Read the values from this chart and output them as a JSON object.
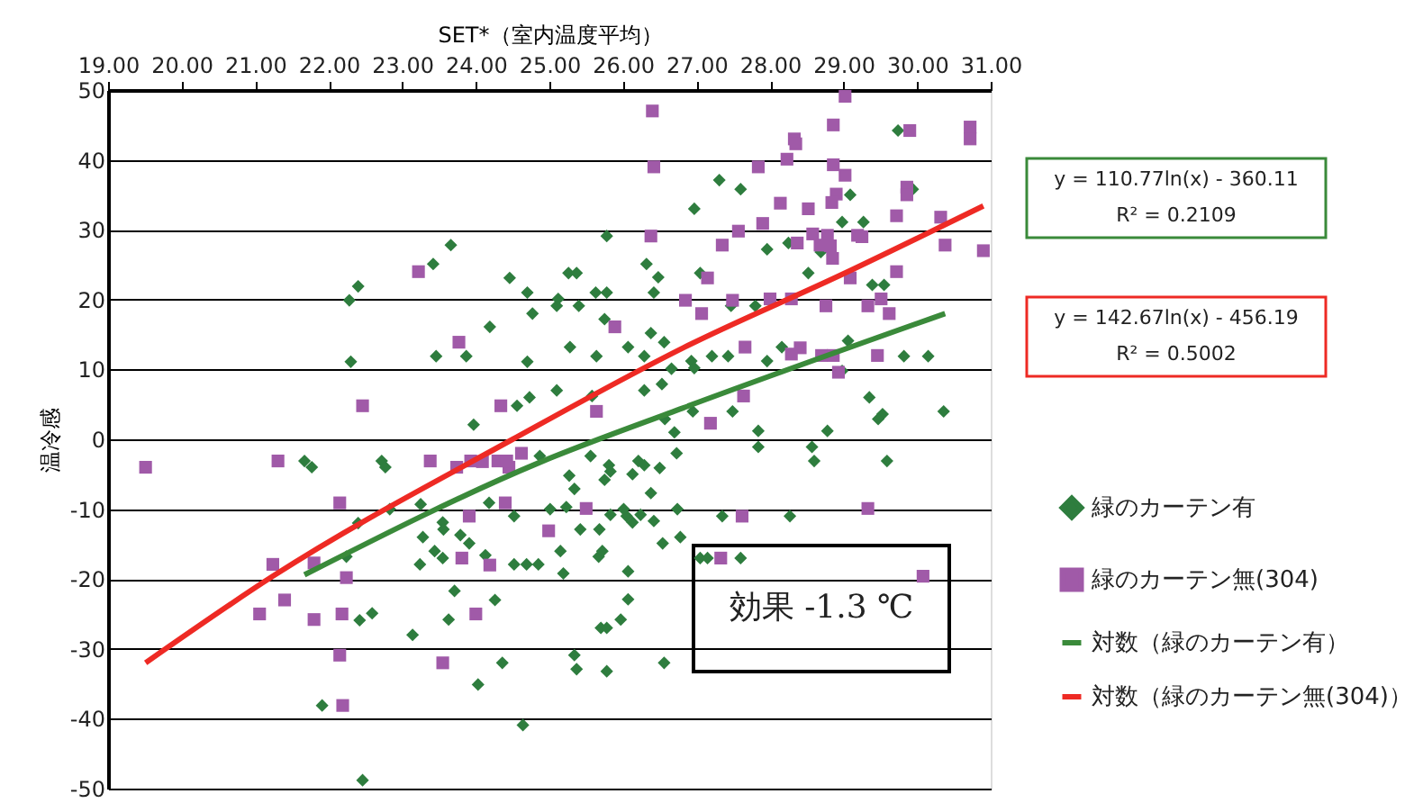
{
  "chart_data": {
    "type": "scatter",
    "xlabel": "SET*（室内温度平均）",
    "ylabel": "温冷感",
    "xlim": [
      19,
      31
    ],
    "ylim": [
      -50,
      50
    ],
    "xticks": [
      {
        "value": 19,
        "label": "19.00"
      },
      {
        "value": 20,
        "label": "20.00"
      },
      {
        "value": 21,
        "label": "21.00"
      },
      {
        "value": 22,
        "label": "22.00"
      },
      {
        "value": 23,
        "label": "23.00"
      },
      {
        "value": 24,
        "label": "24.00"
      },
      {
        "value": 25,
        "label": "25.00"
      },
      {
        "value": 26,
        "label": "26.00"
      },
      {
        "value": 27,
        "label": "27.00"
      },
      {
        "value": 28,
        "label": "28.00"
      },
      {
        "value": 29,
        "label": "29.00"
      },
      {
        "value": 30,
        "label": "30.00"
      },
      {
        "value": 31,
        "label": "31.00"
      }
    ],
    "yticks": [
      -50,
      -40,
      -30,
      -20,
      -10,
      0,
      10,
      20,
      30,
      40,
      50
    ],
    "grid": "y",
    "legend": "right",
    "annotations": [
      "y = 110.77ln(x) - 360.11",
      "R² = 0.2109",
      "y = 142.67ln(x) - 456.19",
      "R² = 0.5002",
      "効果 -1.3 ℃"
    ],
    "series": [
      {
        "name": "緑のカーテン有",
        "marker": "diamond",
        "color": "#2e7d3e",
        "x": [
          22.28,
          22.4,
          22.3,
          23.42,
          23.66,
          23.46,
          23.87,
          24.19,
          24.46,
          24.7,
          24.77,
          24.7,
          24.73,
          24.56,
          23.97,
          25.1,
          25.12,
          25.26,
          25.37,
          25.4,
          25.28,
          25.1,
          25.63,
          25.78,
          25.78,
          25.75,
          25.64,
          25.58,
          26.07,
          26.32,
          26.48,
          26.42,
          26.38,
          26.56,
          26.29,
          26.29,
          26.53,
          26.66,
          26.57,
          26.97,
          26.93,
          26.97,
          27.05,
          27.21,
          26.95,
          27.31,
          29.74,
          27.6,
          29.09,
          29.94,
          28.98,
          29.27,
          27.96,
          28.25,
          28.69,
          28.52,
          29.39,
          29.55,
          27.47,
          27.8,
          27.43,
          27.96,
          28.16,
          29.06,
          29.82,
          30.15,
          28.98,
          29.35,
          29.53,
          29.47,
          30.36,
          27.49,
          27.84,
          28.78,
          27.84,
          28.57,
          28.6,
          29.59,
          27.35,
          28.27,
          27.05,
          27.15,
          27.6,
          21.67,
          21.77,
          22.72,
          22.77,
          22.4,
          22.24,
          22.83,
          23.25,
          23.28,
          23.55,
          23.56,
          23.44,
          23.55,
          23.24,
          23.79,
          23.91,
          23.71,
          23.63,
          23.14,
          22.42,
          22.59,
          21.91,
          22.46,
          24.18,
          24.13,
          24.26,
          24.36,
          24.03,
          24.52,
          24.69,
          24.85,
          24.52,
          24.64,
          24.87,
          25.01,
          25.23,
          25.27,
          25.34,
          25.15,
          25.19,
          25.34,
          25.37,
          25.78,
          25.67,
          25.72,
          25.42,
          25.68,
          25.7,
          25.78,
          25.97,
          26.07,
          26.07,
          25.75,
          25.81,
          25.83,
          25.56,
          25.83,
          26.05,
          26.13,
          26.24,
          26.42,
          26.01,
          26.13,
          26.21,
          26.29,
          26.38,
          26.5,
          26.7,
          26.73,
          26.54,
          26.74,
          26.78,
          26.56
        ],
        "values": [
          19.9,
          21.9,
          11.1,
          25.1,
          27.8,
          11.9,
          11.9,
          16.1,
          23.1,
          21.0,
          18.0,
          11.1,
          6.0,
          4.8,
          2.1,
          19.1,
          20.1,
          23.8,
          23.8,
          19.1,
          13.2,
          7.0,
          21.0,
          21.0,
          29.1,
          17.2,
          11.9,
          6.2,
          13.2,
          25.1,
          23.2,
          21.0,
          15.2,
          13.9,
          11.9,
          7.0,
          7.9,
          10.1,
          2.9,
          33.0,
          11.2,
          10.2,
          23.8,
          11.9,
          4.0,
          37.1,
          44.2,
          35.8,
          35.0,
          35.8,
          31.1,
          31.1,
          27.2,
          28.1,
          26.8,
          23.8,
          22.1,
          22.1,
          19.1,
          19.1,
          11.9,
          11.2,
          13.2,
          14.1,
          11.9,
          11.9,
          9.8,
          6.0,
          3.6,
          2.9,
          4.0,
          4.0,
          1.2,
          1.2,
          -1.1,
          -1.1,
          -3.1,
          -3.1,
          -11.0,
          -11.0,
          -17.0,
          -17.0,
          -17.0,
          -3.1,
          -4.0,
          -3.1,
          -4.0,
          -12.0,
          -16.8,
          -10.0,
          -9.3,
          -14.0,
          -11.9,
          -12.9,
          -16.0,
          -17.0,
          -17.9,
          -13.7,
          -14.9,
          -21.7,
          -25.8,
          -28.0,
          -25.9,
          -24.9,
          -38.1,
          -48.8,
          -9.1,
          -16.6,
          -23.0,
          -32.0,
          -35.1,
          -17.9,
          -17.9,
          -17.9,
          -11.0,
          -40.9,
          -2.4,
          -10.0,
          -9.7,
          -5.2,
          -7.1,
          -16.0,
          -19.2,
          -30.9,
          -32.9,
          -33.2,
          -16.8,
          -16.0,
          -12.9,
          -12.9,
          -27.0,
          -27.0,
          -25.8,
          -22.9,
          -18.9,
          -5.8,
          -3.7,
          -4.6,
          -2.4,
          -10.8,
          -11.0,
          -11.9,
          -10.8,
          -11.7,
          -10.0,
          -5.0,
          -3.1,
          -3.7,
          -7.7,
          -4.1,
          1.0,
          -2.0,
          -14.9,
          -10.0,
          -14.0,
          -32.0
        ]
      },
      {
        "name": "緑のカーテン無(304)",
        "marker": "square",
        "color": "#a05aa8",
        "x": [
          26.4,
          26.42,
          26.38,
          23.22,
          27.15,
          26.85,
          27.07,
          25.89,
          23.77,
          22.46,
          24.34,
          25.64,
          27.35,
          27.19,
          29.02,
          28.86,
          29.9,
          30.72,
          30.72,
          28.33,
          28.35,
          28.23,
          27.84,
          28.86,
          29.02,
          28.9,
          28.84,
          29.86,
          29.86,
          28.14,
          28.52,
          29.72,
          30.32,
          27.9,
          27.57,
          28.58,
          28.78,
          28.82,
          28.85,
          28.37,
          28.68,
          29.19,
          29.25,
          30.38,
          30.9,
          29.09,
          29.72,
          27.49,
          28.0,
          28.29,
          28.76,
          29.33,
          29.51,
          29.62,
          27.66,
          28.29,
          28.41,
          28.7,
          28.86,
          29.46,
          28.93,
          27.64,
          27.62,
          29.33,
          27.33,
          30.08,
          19.51,
          21.31,
          22.15,
          21.24,
          21.8,
          22.24,
          21.06,
          21.4,
          21.8,
          22.18,
          22.15,
          22.19,
          23.38,
          23.74,
          23.93,
          24.09,
          24.3,
          24.45,
          24.42,
          24.62,
          23.91,
          24.4,
          25.5,
          24.99,
          23.81,
          24.19,
          24.0,
          23.55
        ],
        "values": [
          47.0,
          39.0,
          29.1,
          24.0,
          23.1,
          19.9,
          18.0,
          16.1,
          13.9,
          4.8,
          4.8,
          4.0,
          27.8,
          2.3,
          49.1,
          45.0,
          44.2,
          44.7,
          43.0,
          43.0,
          42.3,
          40.1,
          39.0,
          39.3,
          37.8,
          35.1,
          33.9,
          36.1,
          35.0,
          33.8,
          33.0,
          32.0,
          31.8,
          30.9,
          29.8,
          29.4,
          29.2,
          27.7,
          25.9,
          28.1,
          27.8,
          29.2,
          29.0,
          27.8,
          27.0,
          23.1,
          24.0,
          19.9,
          20.1,
          20.1,
          19.1,
          19.1,
          20.1,
          18.0,
          13.2,
          12.2,
          13.1,
          12.0,
          12.0,
          12.0,
          9.6,
          6.2,
          -11.0,
          -9.9,
          -17.0,
          -19.6,
          -4.0,
          -3.1,
          -9.1,
          -17.9,
          -17.7,
          -19.8,
          -25.0,
          -23.0,
          -25.8,
          -25.0,
          -30.9,
          -38.1,
          -3.1,
          -4.0,
          -3.1,
          -3.2,
          -3.1,
          -4.0,
          -3.1,
          -2.0,
          -11.0,
          -9.1,
          -9.9,
          -13.1,
          -17.0,
          -18.0,
          -25.0,
          -32.0
        ]
      },
      {
        "name": "対数（緑のカーテン有）",
        "type": "line",
        "color": "#3a8a3a",
        "x": [
          21.67,
          24.87,
          26.82,
          30.38
        ],
        "values": [
          -19.4,
          -3.3,
          4.5,
          18.0
        ]
      },
      {
        "name": "対数（緑のカーテン無(304)）",
        "type": "line",
        "color": "#ee2a24",
        "x": [
          19.51,
          21.24,
          24.5,
          26.82,
          29.02,
          30.9
        ],
        "values": [
          -32.0,
          -19.6,
          0.0,
          13.1,
          23.8,
          33.4
        ]
      }
    ]
  }
}
